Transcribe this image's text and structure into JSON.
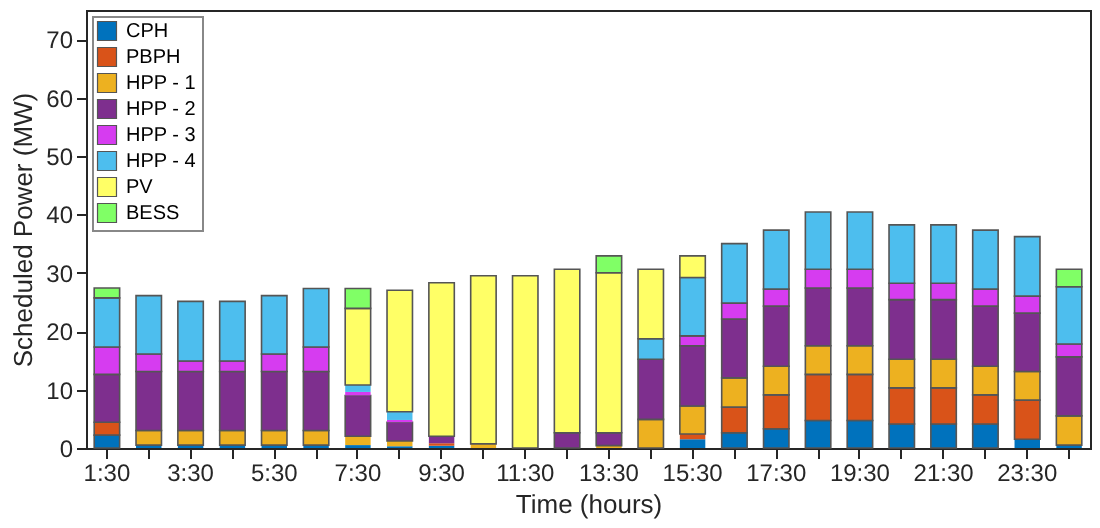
{
  "chart_data": {
    "type": "bar",
    "stacked": true,
    "xlabel": "Time (hours)",
    "ylabel": "Scheduled Power (MW)",
    "categories": [
      "1:30",
      null,
      "3:30",
      null,
      "5:30",
      null,
      "7:30",
      null,
      "9:30",
      null,
      "11:30",
      null,
      "13:30",
      null,
      "15:30",
      null,
      "17:30",
      null,
      "19:30",
      null,
      "21:30",
      null,
      "23:30",
      null
    ],
    "ylim": [
      0,
      75
    ],
    "yticks": [
      0,
      10,
      20,
      30,
      40,
      50,
      60,
      70
    ],
    "grid": false,
    "legend": "top left",
    "series": [
      {
        "name": "CPH",
        "color": "#0072bd",
        "values": [
          2.2,
          0.5,
          0.5,
          0.5,
          0.5,
          0.5,
          0.5,
          0.3,
          0.4,
          0,
          0,
          0,
          0,
          0,
          1.5,
          2.6,
          3.3,
          4.7,
          4.7,
          4.1,
          4.1,
          4.1,
          1.5,
          0.5
        ]
      },
      {
        "name": "PBPH",
        "color": "#d95319",
        "values": [
          2.2,
          0,
          0,
          0,
          0,
          0,
          0,
          0,
          0.4,
          0,
          0,
          0,
          0,
          0,
          0.9,
          4.4,
          5.8,
          7.9,
          7.9,
          6.2,
          6.2,
          5.0,
          6.7,
          0
        ]
      },
      {
        "name": "HPP - 1",
        "color": "#edb120",
        "values": [
          0,
          2.5,
          2.5,
          2.5,
          2.5,
          2.5,
          1.5,
          0.9,
          0,
          0.7,
          0,
          0,
          0.4,
          4.9,
          4.8,
          5.0,
          4.9,
          4.9,
          4.9,
          4.9,
          4.9,
          4.9,
          4.9,
          5.0
        ]
      },
      {
        "name": "HPP - 2",
        "color": "#7e2f8e",
        "values": [
          8.2,
          10.1,
          10.1,
          10.1,
          10.1,
          10.1,
          7.0,
          3.2,
          1.2,
          0,
          0,
          2.6,
          2.2,
          10.3,
          10.3,
          10.1,
          10.3,
          9.9,
          9.9,
          10.2,
          10.2,
          10.3,
          10.0,
          10.1
        ]
      },
      {
        "name": "HPP - 3",
        "color": "#d63cf0",
        "values": [
          4.7,
          3.0,
          1.8,
          1.8,
          3.0,
          4.2,
          0.6,
          0.4,
          0,
          0,
          0,
          0,
          0,
          0,
          1.7,
          2.7,
          2.9,
          3.2,
          3.2,
          2.8,
          2.8,
          2.9,
          2.9,
          2.2
        ]
      },
      {
        "name": "HPP - 4",
        "color": "#4dbeee",
        "values": [
          8.4,
          10.0,
          10.2,
          10.2,
          10.0,
          10.0,
          1.2,
          1.4,
          0,
          0,
          0,
          0,
          0,
          3.5,
          10.0,
          10.2,
          10.1,
          9.8,
          9.8,
          10.0,
          10.0,
          10.1,
          10.2,
          9.8
        ]
      },
      {
        "name": "PV",
        "color": "#ffff66",
        "values": [
          0,
          0,
          0,
          0,
          0,
          0,
          13.1,
          20.8,
          26.3,
          28.8,
          29.5,
          28.0,
          27.4,
          11.9,
          3.7,
          0,
          0,
          0,
          0,
          0,
          0,
          0,
          0,
          0
        ]
      },
      {
        "name": "BESS",
        "color": "#80ff66",
        "values": [
          1.7,
          0,
          0,
          0,
          0,
          0,
          3.4,
          0,
          0,
          0,
          0,
          0,
          2.9,
          0,
          0,
          0,
          0,
          0,
          0,
          0,
          0,
          0,
          0,
          3.0
        ]
      }
    ]
  }
}
